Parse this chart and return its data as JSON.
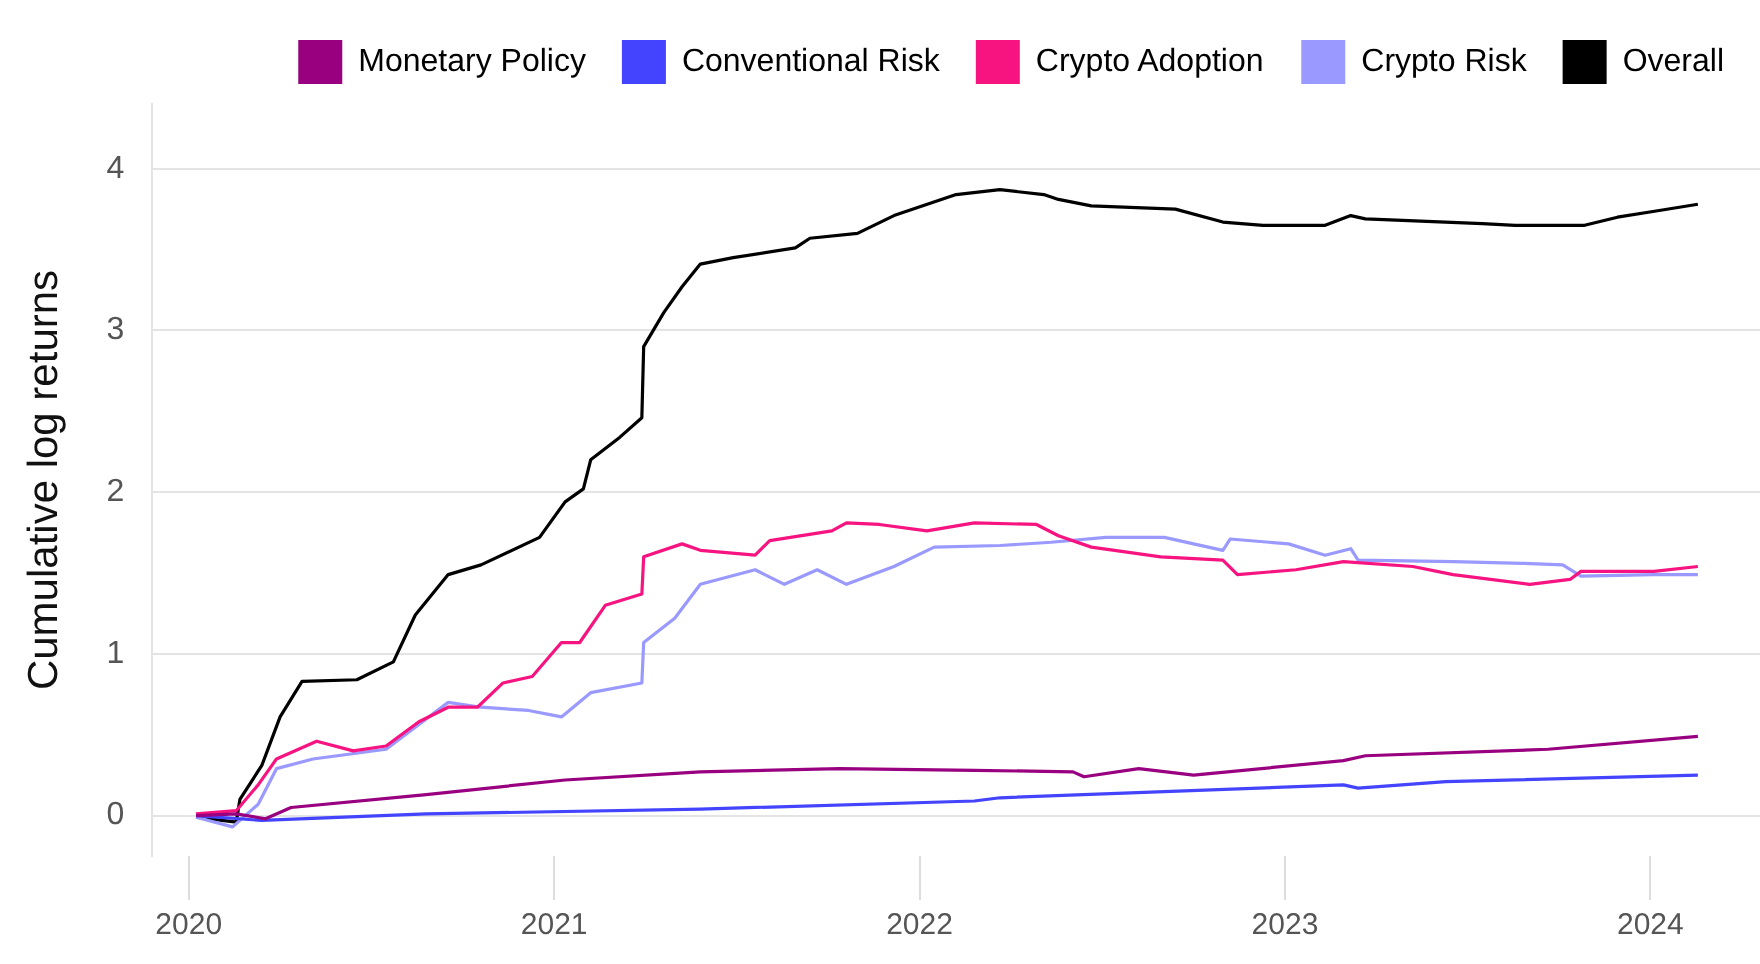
{
  "chart_data": {
    "type": "line",
    "ylabel": "Cumulative log returns",
    "xlim": [
      2019.9,
      2024.3
    ],
    "xticks": [
      2020,
      2021,
      2022,
      2023,
      2024
    ],
    "ylim": [
      -0.25,
      4.4
    ],
    "yticks": [
      0,
      1,
      2,
      3,
      4
    ],
    "grid": "y",
    "legend": "top",
    "marker": "none",
    "line_style": "solid",
    "series": [
      {
        "name": "Monetary Policy",
        "color": "#990080",
        "x": [
          2020.02,
          2020.13,
          2020.21,
          2020.28,
          2020.65,
          2021.03,
          2021.4,
          2021.78,
          2022.15,
          2022.42,
          2022.45,
          2022.6,
          2022.75,
          2023.16,
          2023.22,
          2023.72,
          2024.13
        ],
        "values": [
          0,
          0.01,
          -0.02,
          0.05,
          0.13,
          0.22,
          0.27,
          0.29,
          0.28,
          0.27,
          0.24,
          0.29,
          0.25,
          0.34,
          0.37,
          0.41,
          0.49
        ]
      },
      {
        "name": "Conventional Risk",
        "color": "#4444ff",
        "x": [
          2020.02,
          2020.2,
          2020.65,
          2021.4,
          2022.15,
          2022.22,
          2023.16,
          2023.2,
          2023.44,
          2024.13
        ],
        "values": [
          0,
          -0.03,
          0.01,
          0.04,
          0.09,
          0.11,
          0.19,
          0.17,
          0.21,
          0.25
        ]
      },
      {
        "name": "Crypto Adoption",
        "color": "#f71480",
        "x": [
          2020.02,
          2020.13,
          2020.19,
          2020.24,
          2020.35,
          2020.45,
          2020.54,
          2020.63,
          2020.71,
          2020.79,
          2020.86,
          2020.94,
          2021.02,
          2021.07,
          2021.14,
          2021.24,
          2021.245,
          2021.35,
          2021.4,
          2021.55,
          2021.59,
          2021.76,
          2021.8,
          2021.89,
          2022.02,
          2022.15,
          2022.32,
          2022.38,
          2022.47,
          2022.66,
          2022.83,
          2022.87,
          2023.03,
          2023.16,
          2023.35,
          2023.46,
          2023.67,
          2023.78,
          2023.81,
          2024.01,
          2024.13
        ],
        "values": [
          0.01,
          0.03,
          0.19,
          0.35,
          0.46,
          0.4,
          0.43,
          0.58,
          0.67,
          0.67,
          0.82,
          0.86,
          1.07,
          1.07,
          1.3,
          1.37,
          1.6,
          1.68,
          1.64,
          1.61,
          1.7,
          1.76,
          1.81,
          1.8,
          1.76,
          1.81,
          1.8,
          1.73,
          1.66,
          1.6,
          1.58,
          1.49,
          1.52,
          1.57,
          1.54,
          1.49,
          1.43,
          1.46,
          1.51,
          1.51,
          1.54
        ]
      },
      {
        "name": "Crypto Risk",
        "color": "#9999ff",
        "x": [
          2020.02,
          2020.12,
          2020.19,
          2020.24,
          2020.34,
          2020.54,
          2020.71,
          2020.8,
          2020.93,
          2021.02,
          2021.1,
          2021.24,
          2021.245,
          2021.33,
          2021.4,
          2021.55,
          2021.63,
          2021.72,
          2021.8,
          2021.93,
          2022.04,
          2022.22,
          2022.36,
          2022.51,
          2022.67,
          2022.83,
          2022.85,
          2023.01,
          2023.11,
          2023.18,
          2023.2,
          2023.46,
          2023.65,
          2023.76,
          2023.81,
          2024.01,
          2024.13
        ],
        "values": [
          -0.01,
          -0.07,
          0.07,
          0.29,
          0.35,
          0.41,
          0.7,
          0.67,
          0.65,
          0.61,
          0.76,
          0.82,
          1.07,
          1.22,
          1.43,
          1.52,
          1.43,
          1.52,
          1.43,
          1.54,
          1.66,
          1.67,
          1.69,
          1.72,
          1.72,
          1.64,
          1.71,
          1.68,
          1.61,
          1.65,
          1.58,
          1.57,
          1.56,
          1.55,
          1.48,
          1.49,
          1.49
        ]
      },
      {
        "name": "Overall",
        "color": "#000000",
        "x": [
          2020.02,
          2020.13,
          2020.14,
          2020.2,
          2020.25,
          2020.31,
          2020.46,
          2020.56,
          2020.62,
          2020.71,
          2020.8,
          2020.96,
          2021.03,
          2021.08,
          2021.1,
          2021.18,
          2021.24,
          2021.245,
          2021.3,
          2021.35,
          2021.4,
          2021.49,
          2021.66,
          2021.7,
          2021.83,
          2021.93,
          2022.1,
          2022.22,
          2022.34,
          2022.38,
          2022.47,
          2022.7,
          2022.83,
          2022.94,
          2023.11,
          2023.18,
          2023.22,
          2023.54,
          2023.63,
          2023.82,
          2023.91,
          2024.02,
          2024.13
        ],
        "values": [
          -0.01,
          -0.04,
          0.1,
          0.31,
          0.61,
          0.83,
          0.84,
          0.95,
          1.24,
          1.49,
          1.55,
          1.72,
          1.94,
          2.02,
          2.2,
          2.34,
          2.46,
          2.9,
          3.11,
          3.27,
          3.41,
          3.45,
          3.51,
          3.57,
          3.6,
          3.71,
          3.84,
          3.87,
          3.84,
          3.81,
          3.77,
          3.75,
          3.67,
          3.65,
          3.65,
          3.71,
          3.69,
          3.66,
          3.65,
          3.65,
          3.7,
          3.74,
          3.78
        ]
      }
    ]
  }
}
